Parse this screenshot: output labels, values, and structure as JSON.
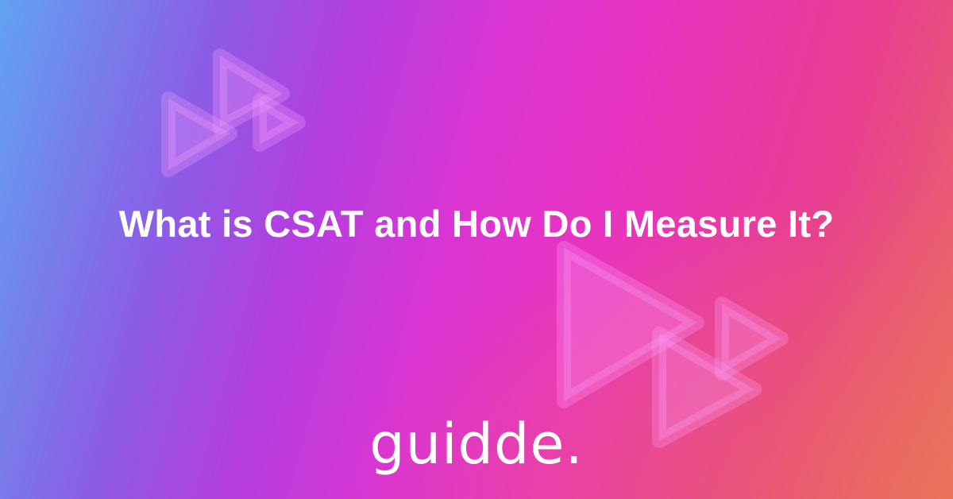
{
  "title": "What is CSAT and How Do I Measure It?",
  "logo": {
    "text": "guidde.",
    "icon": "play-triangles-icon"
  },
  "colors": {
    "gradient_start": "#62a2f2",
    "gradient_mid": "#dc34d2",
    "gradient_end": "#ea6c62",
    "text": "#ffffff"
  }
}
